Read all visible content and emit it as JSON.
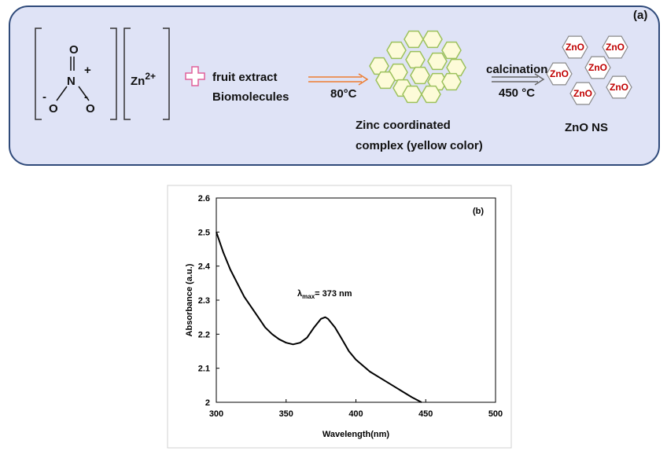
{
  "diagram": {
    "panel_label": "(a)",
    "nitrate": {
      "top_o": "O",
      "n": "N",
      "plus": "+",
      "left_minus": "-",
      "left_o": "O",
      "right_minus": "-",
      "right_o": "O"
    },
    "zinc": {
      "symbol": "Zn",
      "charge": "2+"
    },
    "extract": [
      "fruit extract",
      "Biomolecules"
    ],
    "step1_condition": "80°C",
    "complex_label": [
      "Zinc coordinated",
      "complex (yellow color)"
    ],
    "step2": {
      "process": "calcination",
      "condition": "450 °C"
    },
    "nanoparticles": [
      "ZnO",
      "ZnO",
      "ZnO",
      "ZnO",
      "ZnO",
      "ZnO"
    ],
    "product_label": "ZnO NS"
  },
  "chart_data": {
    "type": "line",
    "panel_label": "(b)",
    "xlabel": "Wavelength(nm)",
    "ylabel": "Absorbance (a.u.)",
    "annotation": {
      "symbol": "λ",
      "subscript": "max",
      "text": "= 373 nm"
    },
    "x": [
      300,
      305,
      310,
      315,
      320,
      325,
      330,
      335,
      340,
      345,
      350,
      355,
      360,
      365,
      370,
      375,
      378,
      380,
      385,
      390,
      395,
      400,
      410,
      420,
      430,
      440,
      447
    ],
    "values": [
      2.5,
      2.44,
      2.39,
      2.35,
      2.31,
      2.28,
      2.25,
      2.22,
      2.2,
      2.185,
      2.175,
      2.17,
      2.175,
      2.19,
      2.22,
      2.245,
      2.25,
      2.245,
      2.22,
      2.185,
      2.15,
      2.125,
      2.09,
      2.065,
      2.04,
      2.015,
      2.0
    ],
    "color": "#000000",
    "xlim": [
      300,
      500
    ],
    "ylim": [
      2,
      2.6
    ],
    "xticks": [
      300,
      350,
      400,
      450,
      500
    ],
    "yticks": [
      2,
      2.1,
      2.2,
      2.3,
      2.4,
      2.5,
      2.6
    ]
  }
}
